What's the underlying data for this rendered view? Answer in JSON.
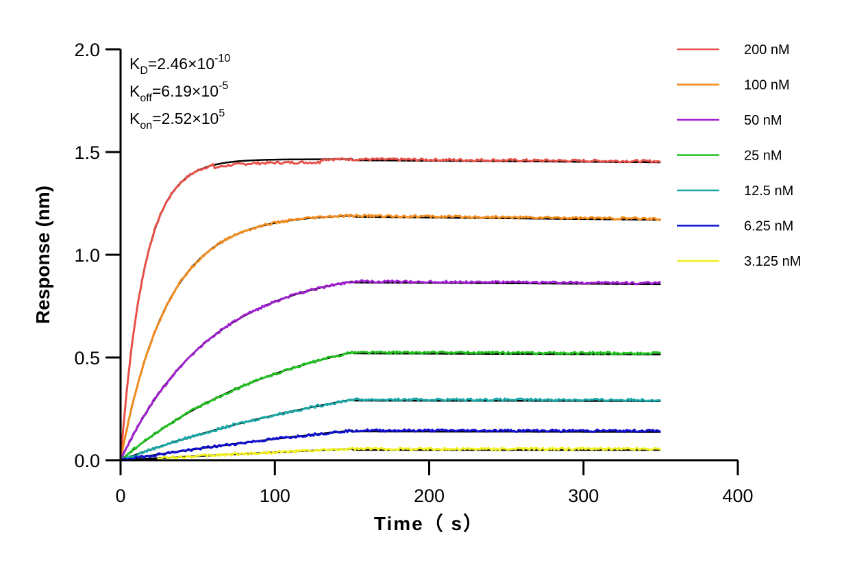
{
  "chart_data": {
    "type": "line",
    "title": "",
    "xlabel": "Time（ s）",
    "ylabel": "Response (nm)",
    "xlim": [
      0,
      400
    ],
    "ylim": [
      0.0,
      2.0
    ],
    "x_ticks": [
      0,
      100,
      200,
      300,
      400
    ],
    "x_tick_labels": [
      "0",
      "100",
      "200",
      "300",
      "400"
    ],
    "y_ticks": [
      0.0,
      0.5,
      1.0,
      1.5,
      2.0
    ],
    "y_tick_labels": [
      "0.0",
      "0.5",
      "1.0",
      "1.5",
      "2.0"
    ],
    "grid": false,
    "legend_position": "top-right",
    "association_end_s": 150,
    "end_time_s": 350,
    "fit_color": "#000000",
    "annotations": [
      {
        "base": "K",
        "sub": "D",
        "mid": "=2.46×10",
        "sup": "-10"
      },
      {
        "base": "K",
        "sub": "off",
        "mid": "=6.19×10",
        "sup": "-5"
      },
      {
        "base": "K",
        "sub": "on",
        "mid": "=2.52×10",
        "sup": "5"
      }
    ],
    "series": [
      {
        "name": "200 nM",
        "color": "#e8514a",
        "plateau_response": 1.465,
        "final_response": 1.455
      },
      {
        "name": "100 nM",
        "color": "#f28c1e",
        "plateau_response": 1.19,
        "final_response": 1.175
      },
      {
        "name": "50 nM",
        "color": "#a020d0",
        "plateau_response": 0.87,
        "final_response": 0.862
      },
      {
        "name": "25 nM",
        "color": "#22c022",
        "plateau_response": 0.525,
        "final_response": 0.52
      },
      {
        "name": "12.5 nM",
        "color": "#1aa6a6",
        "plateau_response": 0.295,
        "final_response": 0.293
      },
      {
        "name": "6.25 nM",
        "color": "#1010d0",
        "plateau_response": 0.145,
        "final_response": 0.143
      },
      {
        "name": "3.125 nM",
        "color": "#f0f020",
        "plateau_response": 0.055,
        "final_response": 0.055
      }
    ]
  }
}
